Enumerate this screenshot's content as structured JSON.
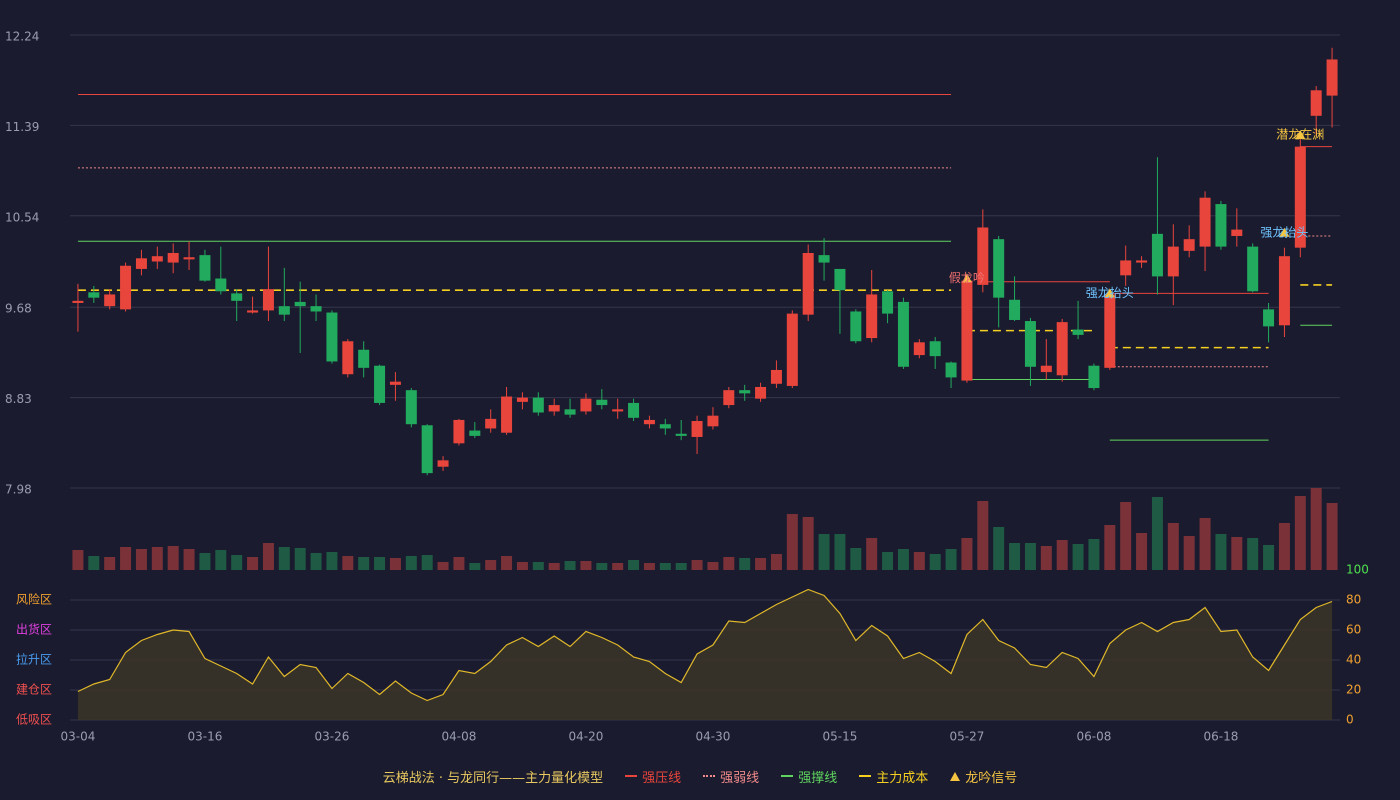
{
  "chart_data": {
    "type": "candlestick",
    "title": "云梯战法 · 与龙同行——主力量化模型",
    "background": "#1a1b2e",
    "up_color": "#e8453c",
    "down_color": "#22ab5e",
    "categories": [
      "03-04",
      null,
      null,
      null,
      null,
      null,
      null,
      null,
      "03-16",
      null,
      null,
      null,
      null,
      null,
      null,
      null,
      "03-26",
      null,
      null,
      null,
      null,
      null,
      null,
      null,
      "04-08",
      null,
      null,
      null,
      null,
      null,
      null,
      null,
      "04-20",
      null,
      null,
      null,
      null,
      null,
      null,
      null,
      "04-30",
      null,
      null,
      null,
      null,
      null,
      null,
      null,
      "05-15",
      null,
      null,
      null,
      null,
      null,
      null,
      null,
      "05-27",
      null,
      null,
      null,
      null,
      null,
      null,
      null,
      "06-08",
      null,
      null,
      null,
      null,
      null,
      null,
      null,
      "06-18",
      null,
      null,
      null,
      null,
      null,
      null,
      null
    ],
    "open": [
      9.72,
      9.82,
      9.69,
      9.66,
      10.04,
      10.11,
      10.1,
      10.13,
      10.17,
      9.95,
      9.81,
      9.63,
      9.65,
      9.69,
      9.73,
      9.69,
      9.63,
      9.05,
      9.28,
      9.13,
      8.95,
      8.9,
      8.57,
      8.18,
      8.4,
      8.52,
      8.54,
      8.5,
      8.79,
      8.83,
      8.7,
      8.72,
      8.7,
      8.81,
      8.7,
      8.78,
      8.58,
      8.58,
      8.49,
      8.46,
      8.56,
      8.76,
      8.9,
      8.82,
      8.96,
      8.94,
      9.61,
      10.17,
      10.04,
      9.64,
      9.39,
      9.83,
      9.73,
      9.23,
      9.36,
      9.16,
      8.99,
      9.89,
      10.32,
      9.75,
      9.55,
      9.07,
      9.04,
      9.47,
      9.13,
      9.11,
      9.98,
      10.1,
      10.37,
      9.97,
      10.21,
      10.25,
      10.65,
      10.35,
      10.25,
      9.66,
      9.51,
      10.24,
      11.48,
      11.67
    ],
    "high": [
      9.9,
      9.88,
      9.85,
      10.1,
      10.22,
      10.25,
      10.28,
      10.3,
      10.22,
      10.25,
      9.85,
      9.78,
      10.25,
      10.05,
      9.92,
      9.8,
      9.65,
      9.38,
      9.36,
      9.14,
      9.07,
      8.92,
      8.58,
      8.28,
      8.63,
      8.6,
      8.72,
      8.93,
      8.88,
      8.88,
      8.82,
      8.82,
      8.87,
      8.91,
      8.82,
      8.82,
      8.66,
      8.63,
      8.62,
      8.66,
      8.74,
      8.93,
      8.95,
      8.97,
      9.18,
      9.65,
      10.27,
      10.33,
      10.04,
      9.66,
      10.03,
      9.84,
      9.77,
      9.38,
      9.4,
      9.17,
      9.96,
      10.6,
      10.35,
      9.97,
      9.58,
      9.38,
      9.57,
      9.74,
      9.15,
      9.82,
      10.26,
      10.16,
      11.09,
      10.46,
      10.45,
      10.77,
      10.68,
      10.61,
      10.28,
      9.72,
      10.24,
      11.28,
      11.76,
      12.12
    ],
    "low": [
      9.45,
      9.72,
      9.66,
      9.64,
      9.98,
      10.04,
      10.0,
      10.03,
      9.92,
      9.8,
      9.55,
      9.62,
      9.55,
      9.55,
      9.25,
      9.55,
      9.15,
      9.02,
      9.02,
      8.76,
      8.8,
      8.55,
      8.1,
      8.14,
      8.38,
      8.45,
      8.5,
      8.48,
      8.72,
      8.66,
      8.66,
      8.64,
      8.67,
      8.72,
      8.63,
      8.61,
      8.54,
      8.48,
      8.43,
      8.3,
      8.53,
      8.73,
      8.8,
      8.79,
      8.92,
      8.92,
      9.55,
      9.93,
      9.43,
      9.34,
      9.35,
      9.53,
      9.1,
      9.2,
      9.1,
      8.92,
      8.97,
      9.82,
      9.49,
      9.55,
      8.94,
      9.0,
      8.98,
      9.38,
      8.9,
      9.09,
      9.88,
      10.05,
      9.8,
      9.7,
      10.15,
      10.02,
      10.22,
      10.25,
      9.82,
      9.35,
      9.4,
      10.15,
      11.3,
      11.37
    ],
    "close": [
      9.74,
      9.77,
      9.8,
      10.07,
      10.14,
      10.16,
      10.19,
      10.15,
      9.93,
      9.83,
      9.74,
      9.65,
      9.85,
      9.61,
      9.69,
      9.64,
      9.17,
      9.36,
      9.11,
      8.78,
      8.98,
      8.58,
      8.12,
      8.24,
      8.62,
      8.47,
      8.63,
      8.84,
      8.83,
      8.69,
      8.76,
      8.67,
      8.82,
      8.76,
      8.72,
      8.64,
      8.62,
      8.54,
      8.47,
      8.61,
      8.66,
      8.9,
      8.87,
      8.93,
      9.09,
      9.62,
      10.19,
      10.1,
      9.84,
      9.36,
      9.8,
      9.62,
      9.12,
      9.35,
      9.22,
      9.02,
      9.93,
      10.43,
      9.77,
      9.56,
      9.12,
      9.13,
      9.54,
      9.42,
      8.92,
      9.8,
      10.12,
      10.12,
      9.97,
      10.25,
      10.32,
      10.71,
      10.25,
      10.41,
      9.83,
      9.5,
      10.16,
      11.19,
      11.72,
      12.01
    ],
    "volume": [
      20,
      14,
      13,
      23,
      21,
      23,
      24,
      21,
      17,
      20,
      15,
      13,
      27,
      23,
      22,
      17,
      18,
      14,
      13,
      13,
      12,
      14,
      15,
      8,
      13,
      7,
      10,
      14,
      8,
      8,
      7,
      9,
      9,
      7,
      7,
      10,
      7,
      7,
      7,
      10,
      8,
      13,
      12,
      12,
      16,
      56,
      53,
      36,
      36,
      22,
      32,
      18,
      21,
      18,
      16,
      21,
      32,
      69,
      43,
      27,
      27,
      24,
      30,
      26,
      31,
      45,
      68,
      37,
      73,
      47,
      34,
      52,
      36,
      33,
      32,
      25,
      47,
      74,
      82,
      67
    ],
    "ylim": [
      7.98,
      12.24
    ],
    "yticks": [
      12.24,
      11.39,
      10.54,
      9.68,
      8.83,
      7.98
    ],
    "grid": true,
    "indicator": {
      "color": "#e0b82a",
      "fill": "#3a3428",
      "values": [
        19,
        24,
        27,
        45,
        53,
        57,
        60,
        59,
        41,
        36,
        31,
        24,
        42,
        29,
        37,
        35,
        21,
        31,
        25,
        17,
        26,
        18,
        13,
        17,
        33,
        31,
        39,
        50,
        55,
        49,
        56,
        49,
        59,
        55,
        50,
        42,
        39,
        31,
        25,
        44,
        50,
        66,
        65,
        71,
        77,
        82,
        87,
        83,
        71,
        53,
        63,
        56,
        41,
        45,
        39,
        31,
        57,
        67,
        53,
        48,
        37,
        35,
        45,
        41,
        29,
        51,
        60,
        65,
        59,
        65,
        67,
        75,
        59,
        60,
        42,
        33,
        50,
        67,
        75,
        79
      ]
    },
    "y2lim": [
      0,
      100
    ],
    "y2ticks": [
      100,
      80,
      60,
      40,
      20,
      0
    ],
    "y2tick_colors": [
      "#4ee04e",
      "#f0a030",
      "#f0a030",
      "#f0a030",
      "#f0a030",
      "#f0a030"
    ],
    "zones": [
      {
        "value": 80,
        "label": "风险区",
        "color": "#f0a030"
      },
      {
        "value": 60,
        "label": "出货区",
        "color": "#e040e0"
      },
      {
        "value": 40,
        "label": "拉升区",
        "color": "#4a9cf0"
      },
      {
        "value": 20,
        "label": "建仓区",
        "color": "#f05050"
      },
      {
        "value": 0,
        "label": "低吸区",
        "color": "#f05050"
      }
    ],
    "levels": [
      {
        "name": "强压线",
        "color": "#e8453c",
        "style": "solid",
        "segments": [
          {
            "start": 0,
            "end": 55,
            "value": 11.68
          },
          {
            "start": 57,
            "end": 65,
            "value": 9.92
          },
          {
            "start": 65,
            "end": 75,
            "value": 9.81
          },
          {
            "start": 77,
            "end": 79,
            "value": 11.19
          }
        ]
      },
      {
        "name": "强弱线",
        "color": "#f08a8a",
        "style": "dotted",
        "segments": [
          {
            "start": 0,
            "end": 55,
            "value": 10.99
          },
          {
            "start": 65,
            "end": 75,
            "value": 9.12
          },
          {
            "start": 77,
            "end": 79,
            "value": 10.35
          }
        ]
      },
      {
        "name": "强撑线",
        "color": "#5fd35f",
        "style": "solid",
        "segments": [
          {
            "start": 0,
            "end": 55,
            "value": 10.3
          },
          {
            "start": 56,
            "end": 64,
            "value": 9.0
          },
          {
            "start": 65,
            "end": 75,
            "value": 8.43
          },
          {
            "start": 77,
            "end": 79,
            "value": 9.51
          }
        ]
      },
      {
        "name": "主力成本",
        "color": "#f5d020",
        "style": "dashed",
        "segments": [
          {
            "start": 0,
            "end": 55,
            "value": 9.84
          },
          {
            "start": 56,
            "end": 64,
            "value": 9.46
          },
          {
            "start": 65,
            "end": 75,
            "value": 9.3
          },
          {
            "start": 77,
            "end": 79,
            "value": 9.89
          }
        ]
      }
    ],
    "signals": {
      "name": "龙吟信号",
      "color": "#f5c542",
      "points": [
        {
          "index": 56,
          "value": 9.95,
          "label": "假龙吟",
          "color": "#f07070"
        },
        {
          "index": 65,
          "value": 9.81,
          "label": "强龙抬头",
          "color": "#6fc3ff"
        },
        {
          "index": 76,
          "value": 10.38,
          "label": "强龙抬头",
          "color": "#6fc3ff"
        },
        {
          "index": 77,
          "value": 11.3,
          "label": "潜龙在渊",
          "color": "#f5c542"
        }
      ]
    }
  }
}
